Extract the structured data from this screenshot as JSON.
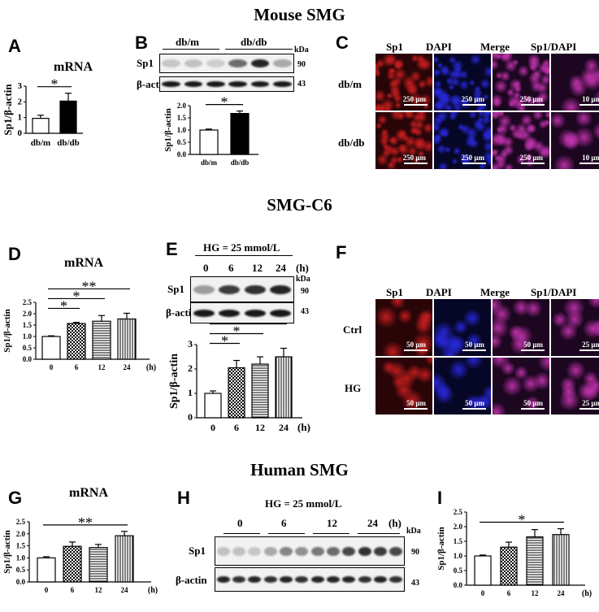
{
  "sections": {
    "mouse": "Mouse SMG",
    "cell": "SMG-C6",
    "human": "Human SMG"
  },
  "panels": {
    "A": "A",
    "B": "B",
    "C": "C",
    "D": "D",
    "E": "E",
    "F": "F",
    "G": "G",
    "H": "H",
    "I": "I"
  },
  "common": {
    "mrna": "mRNA",
    "ylabel": "Sp1/β-actin",
    "kda": "kDa",
    "sp1": "Sp1",
    "actin": "β-actin",
    "mw_sp1": "90",
    "mw_actin": "43",
    "hg": "HG = 25 mmol/L",
    "hours_unit": "(h)",
    "star": "*",
    "dstar": "**"
  },
  "panelB": {
    "groups": [
      "db/m",
      "db/db"
    ]
  },
  "panelC": {
    "columns": [
      "Sp1",
      "DAPI",
      "Merge",
      "Sp1/DAPI"
    ],
    "rows": [
      "db/m",
      "db/db"
    ],
    "scale": [
      "250 μm",
      "250 μm",
      "250 μm",
      "10 μm"
    ]
  },
  "panelE": {
    "times": [
      "0",
      "6",
      "12",
      "24"
    ]
  },
  "panelF": {
    "columns": [
      "Sp1",
      "DAPI",
      "Merge",
      "Sp1/DAPI"
    ],
    "rows": [
      "Ctrl",
      "HG"
    ],
    "scale": [
      "50 μm",
      "50 μm",
      "50 μm",
      "25 μm"
    ]
  },
  "panelH": {
    "times": [
      "0",
      "6",
      "12",
      "24"
    ]
  },
  "colors": {
    "red_stain": "#b01010",
    "blue_stain": "#1a1ab0",
    "merge": "#8a2a8a"
  },
  "chart_data": [
    {
      "id": "A",
      "type": "bar",
      "title": "mRNA",
      "categories": [
        "db/m",
        "db/db"
      ],
      "values": [
        0.95,
        2.05
      ],
      "errors": [
        0.2,
        0.5
      ],
      "ylabel": "Sp1/β-actin",
      "ylim": [
        0,
        3
      ],
      "yticks": [
        "0",
        "1",
        "2",
        "3"
      ],
      "fills": [
        "white",
        "black"
      ],
      "significance": [
        {
          "from": 0,
          "to": 1,
          "label": "*"
        }
      ]
    },
    {
      "id": "B",
      "type": "bar",
      "title": "",
      "categories": [
        "db/m",
        "db/db"
      ],
      "values": [
        1.0,
        1.68
      ],
      "errors": [
        0.04,
        0.1
      ],
      "ylabel": "Sp1/β-actin",
      "ylim": [
        0,
        2.0
      ],
      "yticks": [
        "0.0",
        "0.5",
        "1.0",
        "1.5",
        "2.0"
      ],
      "fills": [
        "white",
        "black"
      ],
      "significance": [
        {
          "from": 0,
          "to": 1,
          "label": "*"
        }
      ]
    },
    {
      "id": "D",
      "type": "bar",
      "title": "mRNA",
      "categories": [
        "0",
        "6",
        "12",
        "24"
      ],
      "values": [
        1.0,
        1.57,
        1.67,
        1.77
      ],
      "errors": [
        0.03,
        0.05,
        0.25,
        0.25
      ],
      "ylabel": "Sp1/β-actin",
      "ylim": [
        0,
        2.5
      ],
      "yticks": [
        "0.0",
        "0.5",
        "1.0",
        "1.5",
        "2.0",
        "2.5"
      ],
      "xunit": "(h)",
      "fills": [
        "white",
        "check",
        "hstripe",
        "vstripe"
      ],
      "significance": [
        {
          "from": 0,
          "to": 1,
          "label": "*"
        },
        {
          "from": 0,
          "to": 2,
          "label": "*"
        },
        {
          "from": 0,
          "to": 3,
          "label": "**"
        }
      ]
    },
    {
      "id": "E",
      "type": "bar",
      "title": "",
      "categories": [
        "0",
        "6",
        "12",
        "24"
      ],
      "values": [
        1.0,
        2.05,
        2.2,
        2.5
      ],
      "errors": [
        0.1,
        0.3,
        0.3,
        0.35
      ],
      "ylabel": "Sp1/β-actin",
      "ylim": [
        0,
        3
      ],
      "yticks": [
        "0",
        "1",
        "2",
        "3"
      ],
      "xunit": "(h)",
      "fills": [
        "white",
        "check",
        "hstripe",
        "vstripe"
      ],
      "significance": [
        {
          "from": 0,
          "to": 1,
          "label": "*"
        },
        {
          "from": 0,
          "to": 2,
          "label": "*"
        },
        {
          "from": 0,
          "to": 3,
          "label": "*"
        }
      ]
    },
    {
      "id": "G",
      "type": "bar",
      "title": "mRNA",
      "categories": [
        "0",
        "6",
        "12",
        "24"
      ],
      "values": [
        1.0,
        1.48,
        1.43,
        1.92
      ],
      "errors": [
        0.05,
        0.18,
        0.13,
        0.18
      ],
      "ylabel": "Sp1/β-actin",
      "ylim": [
        0,
        2.5
      ],
      "yticks": [
        "0.0",
        "0.5",
        "1.0",
        "1.5",
        "2.0",
        "2.5"
      ],
      "xunit": "(h)",
      "fills": [
        "white",
        "check",
        "hstripe",
        "vstripe"
      ],
      "significance": [
        {
          "from": 0,
          "to": 3,
          "label": "**"
        }
      ]
    },
    {
      "id": "I",
      "type": "bar",
      "title": "",
      "categories": [
        "0",
        "6",
        "12",
        "24"
      ],
      "values": [
        1.0,
        1.3,
        1.65,
        1.73
      ],
      "errors": [
        0.03,
        0.17,
        0.25,
        0.2
      ],
      "ylabel": "Sp1/β-actin",
      "ylim": [
        0,
        2.5
      ],
      "yticks": [
        "0.0",
        "0.5",
        "1.0",
        "1.5",
        "2.0",
        "2.5"
      ],
      "xunit": "(h)",
      "fills": [
        "white",
        "check",
        "hstripe",
        "vstripe"
      ],
      "significance": [
        {
          "from": 0,
          "to": 3,
          "label": "*"
        }
      ]
    }
  ]
}
